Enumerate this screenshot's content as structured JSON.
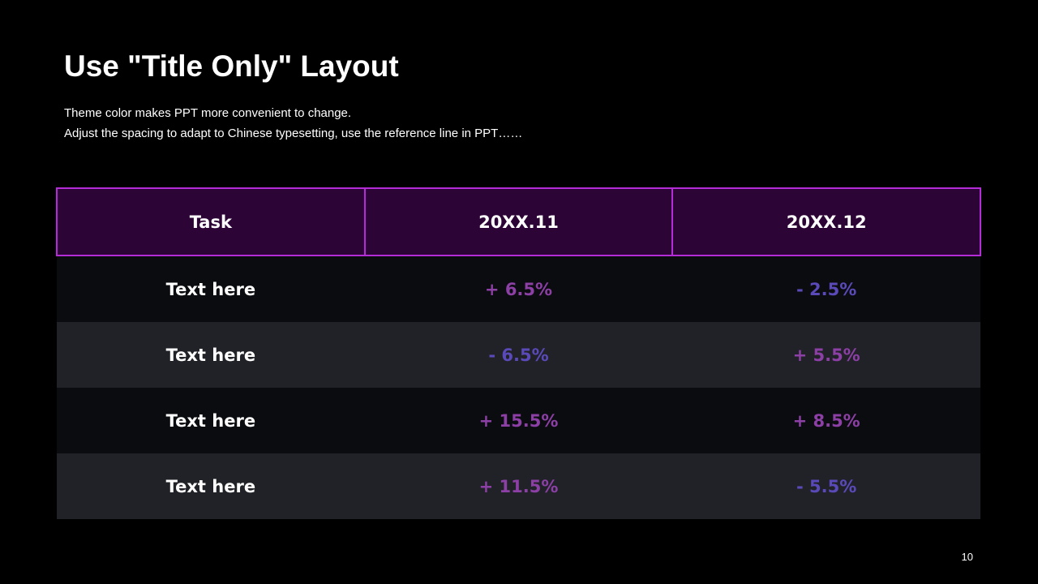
{
  "slide": {
    "title": "Use \"Title Only\" Layout",
    "subtitle_lines": [
      "Theme color makes PPT more convenient to change.",
      "Adjust the spacing to adapt to Chinese typesetting, use the reference line in PPT……"
    ],
    "page_number": "10"
  },
  "table": {
    "headers": [
      "Task",
      "20XX.11",
      "20XX.12"
    ],
    "rows": [
      {
        "task": "Text here",
        "col1": "+ 6.5%",
        "col2": "- 2.5%"
      },
      {
        "task": "Text here",
        "col1": "- 6.5%",
        "col2": "+ 5.5%"
      },
      {
        "task": "Text here",
        "col1": "+ 15.5%",
        "col2": "+ 8.5%"
      },
      {
        "task": "Text here",
        "col1": "+ 11.5%",
        "col2": "- 5.5%"
      }
    ]
  },
  "colors": {
    "background": "#000000",
    "header_fill": "#2d0436",
    "header_border": "#b42cd6",
    "row_dark": "#0b0c0f",
    "row_light": "#202227",
    "positive_value": "#8c3fa5",
    "negative_value": "#5a4ab9"
  }
}
